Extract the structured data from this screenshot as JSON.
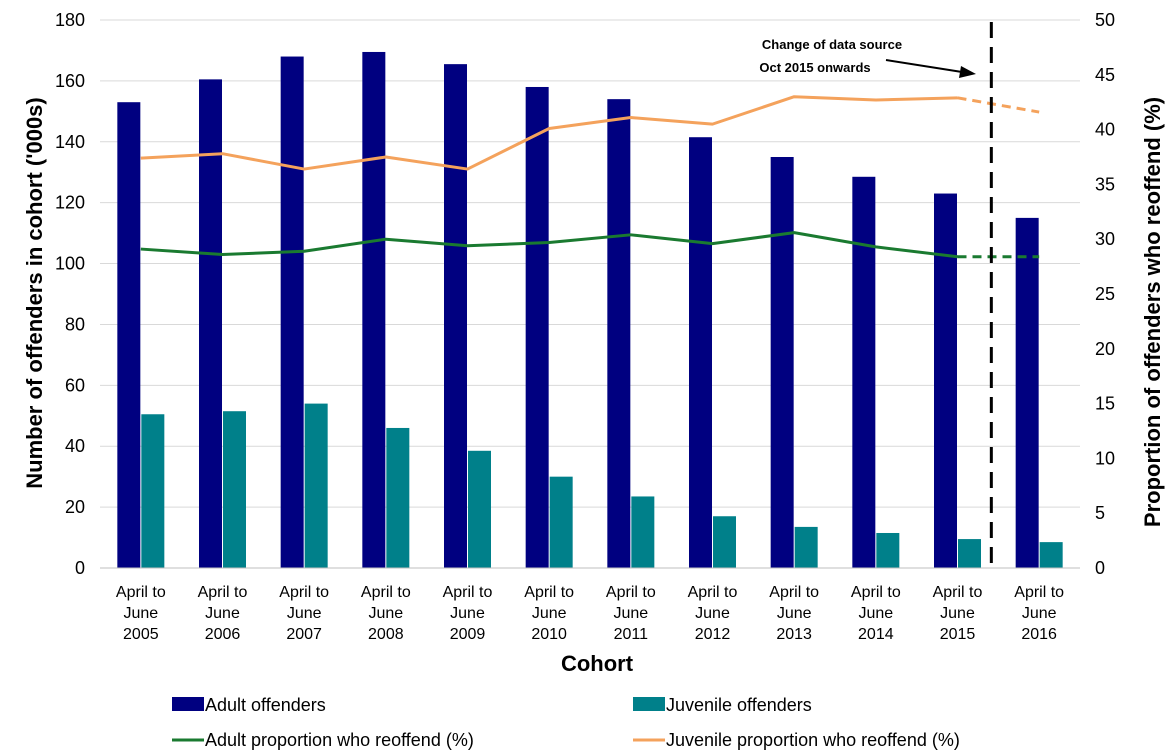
{
  "chart_data": {
    "type": "bar",
    "categories": [
      [
        "April to",
        "June",
        "2005"
      ],
      [
        "April to",
        "June",
        "2006"
      ],
      [
        "April to",
        "June",
        "2007"
      ],
      [
        "April to",
        "June",
        "2008"
      ],
      [
        "April to",
        "June",
        "2009"
      ],
      [
        "April to",
        "June",
        "2010"
      ],
      [
        "April to",
        "June",
        "2011"
      ],
      [
        "April to",
        "June",
        "2012"
      ],
      [
        "April to",
        "June",
        "2013"
      ],
      [
        "April to",
        "June",
        "2014"
      ],
      [
        "April to",
        "June",
        "2015"
      ],
      [
        "April to",
        "June",
        "2016"
      ]
    ],
    "xlabel": "Cohort",
    "ylabel": "Number of offenders in cohort ('000s)",
    "y2label": "Proportion of offenders who reoffend (%)",
    "ylim": [
      0,
      180
    ],
    "yticks": [
      0,
      20,
      40,
      60,
      80,
      100,
      120,
      140,
      160,
      180
    ],
    "y2lim": [
      0,
      50
    ],
    "y2ticks": [
      0,
      5,
      10,
      15,
      20,
      25,
      30,
      35,
      40,
      45,
      50
    ],
    "grid": true,
    "bar_series": [
      {
        "name": "Adult offenders",
        "color": "#000080",
        "values": [
          153,
          160.5,
          168,
          169.5,
          165.5,
          158,
          154,
          141.5,
          135,
          128.5,
          123,
          115
        ]
      },
      {
        "name": "Juvenile offenders",
        "color": "#00808a",
        "values": [
          50.5,
          51.5,
          54,
          46,
          38.5,
          30,
          23.5,
          17,
          13.5,
          11.5,
          9.5,
          8.5
        ]
      }
    ],
    "line_series": [
      {
        "name": "Adult proportion who reoffend (%)",
        "color": "#1a7a30",
        "axis": "right",
        "values": [
          29.1,
          28.6,
          28.9,
          30.0,
          29.4,
          29.7,
          30.4,
          29.6,
          30.6,
          29.3,
          28.4,
          28.4
        ],
        "dashed_from_index": 10
      },
      {
        "name": "Juvenile proportion who reoffend (%)",
        "color": "#f4a25c",
        "axis": "right",
        "values": [
          37.4,
          37.8,
          36.4,
          37.5,
          36.4,
          40.1,
          41.1,
          40.5,
          43.0,
          42.7,
          42.9,
          41.6
        ],
        "dashed_from_index": 10
      }
    ],
    "annotation": {
      "lines": [
        "Change of data source",
        "Oct 2015 onwards"
      ],
      "divider_after_index": 10
    },
    "legend_position": "bottom"
  }
}
